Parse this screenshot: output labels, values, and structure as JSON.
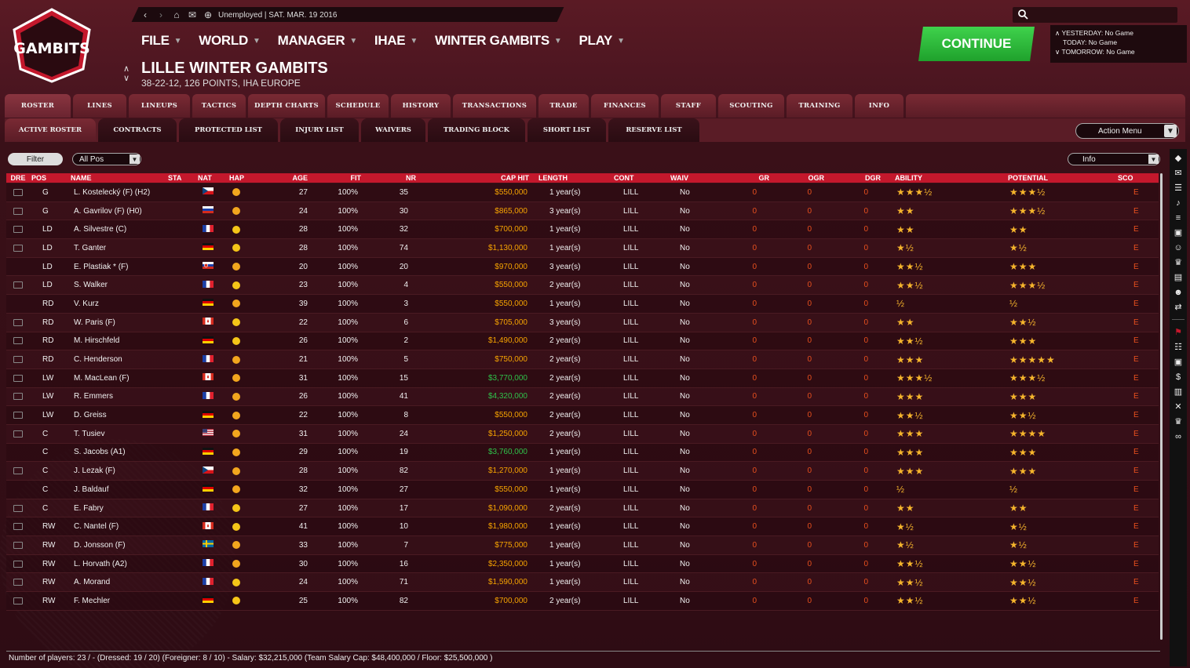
{
  "topbar": {
    "status": "Unemployed |  SAT. MAR. 19 2016"
  },
  "logo": {
    "text": "GAMBITS"
  },
  "menu": [
    {
      "label": "FILE"
    },
    {
      "label": "WORLD"
    },
    {
      "label": "MANAGER"
    },
    {
      "label": "IHAE"
    },
    {
      "label": "WINTER GAMBITS"
    },
    {
      "label": "PLAY"
    }
  ],
  "team": {
    "title": "LILLE WINTER GAMBITS",
    "subtitle": "38-22-12, 126 POINTS, IHA EUROPE"
  },
  "continue_label": "CONTINUE",
  "games": {
    "yesterday": "YESTERDAY: No Game",
    "today": "TODAY: No Game",
    "tomorrow": "TOMORROW: No Game"
  },
  "tabs_main": [
    "ROSTER",
    "LINES",
    "LINEUPS",
    "TACTICS",
    "DEPTH CHARTS",
    "SCHEDULE",
    "HISTORY",
    "TRANSACTIONS",
    "TRADE",
    "FINANCES",
    "STAFF",
    "SCOUTING",
    "TRAINING",
    "INFO"
  ],
  "tabs_sub": [
    "ACTIVE ROSTER",
    "CONTRACTS",
    "PROTECTED LIST",
    "INJURY LIST",
    "WAIVERS",
    "TRADING BLOCK",
    "SHORT LIST",
    "RESERVE LIST"
  ],
  "action_menu": "Action Menu",
  "filter_label": "Filter",
  "pos_select": "All Pos",
  "info_select": "Info",
  "columns": [
    "DRE",
    "POS",
    "NAME",
    "STA",
    "NAT",
    "HAP",
    "AGE",
    "FIT",
    "NR",
    "CAP HIT",
    "LENGTH",
    "CONT",
    "WAIV",
    "GR",
    "OGR",
    "DGR",
    "ABILITY",
    "POTENTIAL",
    "SCO"
  ],
  "players": [
    {
      "dre": true,
      "pos": "G",
      "name": "L. Kostelecký (F) (H2)",
      "nat": "CZ",
      "hap": "orange",
      "age": "27",
      "fit": "100%",
      "nr": "35",
      "cap": "$550,000",
      "cap_color": "orange",
      "length": "1 year(s)",
      "cont": "LILL",
      "waiv": "No",
      "gr": "0",
      "ogr": "0",
      "dgr": "0",
      "ability": "★★★½",
      "potential": "★★★½",
      "sco": "E"
    },
    {
      "dre": true,
      "pos": "G",
      "name": "A. Gavrilov (F) (H0)",
      "nat": "RU",
      "hap": "orange",
      "age": "24",
      "fit": "100%",
      "nr": "30",
      "cap": "$865,000",
      "cap_color": "orange",
      "length": "3 year(s)",
      "cont": "LILL",
      "waiv": "No",
      "gr": "0",
      "ogr": "0",
      "dgr": "0",
      "ability": "★★",
      "potential": "★★★½",
      "sco": "E"
    },
    {
      "dre": true,
      "pos": "LD",
      "name": "A. Silvestre (C)",
      "nat": "FR",
      "hap": "yellow",
      "age": "28",
      "fit": "100%",
      "nr": "32",
      "cap": "$700,000",
      "cap_color": "orange",
      "length": "1 year(s)",
      "cont": "LILL",
      "waiv": "No",
      "gr": "0",
      "ogr": "0",
      "dgr": "0",
      "ability": "★★",
      "potential": "★★",
      "sco": "E"
    },
    {
      "dre": true,
      "pos": "LD",
      "name": "T. Ganter",
      "nat": "DE",
      "hap": "yellow",
      "age": "28",
      "fit": "100%",
      "nr": "74",
      "cap": "$1,130,000",
      "cap_color": "orange",
      "length": "1 year(s)",
      "cont": "LILL",
      "waiv": "No",
      "gr": "0",
      "ogr": "0",
      "dgr": "0",
      "ability": "★½",
      "potential": "★½",
      "sco": "E"
    },
    {
      "dre": false,
      "pos": "LD",
      "name": "E. Plastiak * (F)",
      "nat": "SK",
      "hap": "orange",
      "age": "20",
      "fit": "100%",
      "nr": "20",
      "cap": "$970,000",
      "cap_color": "orange",
      "length": "3 year(s)",
      "cont": "LILL",
      "waiv": "No",
      "gr": "0",
      "ogr": "0",
      "dgr": "0",
      "ability": "★★½",
      "potential": "★★★",
      "sco": "E"
    },
    {
      "dre": true,
      "pos": "LD",
      "name": "S. Walker",
      "nat": "FR",
      "hap": "yellow",
      "age": "23",
      "fit": "100%",
      "nr": "4",
      "cap": "$550,000",
      "cap_color": "orange",
      "length": "2 year(s)",
      "cont": "LILL",
      "waiv": "No",
      "gr": "0",
      "ogr": "0",
      "dgr": "0",
      "ability": "★★½",
      "potential": "★★★½",
      "sco": "E"
    },
    {
      "dre": false,
      "pos": "RD",
      "name": "V. Kurz",
      "nat": "DE",
      "hap": "orange",
      "age": "39",
      "fit": "100%",
      "nr": "3",
      "cap": "$550,000",
      "cap_color": "orange",
      "length": "1 year(s)",
      "cont": "LILL",
      "waiv": "No",
      "gr": "0",
      "ogr": "0",
      "dgr": "0",
      "ability": "½",
      "potential": "½",
      "sco": "E"
    },
    {
      "dre": true,
      "pos": "RD",
      "name": "W. Paris (F)",
      "nat": "CA",
      "hap": "yellow",
      "age": "22",
      "fit": "100%",
      "nr": "6",
      "cap": "$705,000",
      "cap_color": "orange",
      "length": "3 year(s)",
      "cont": "LILL",
      "waiv": "No",
      "gr": "0",
      "ogr": "0",
      "dgr": "0",
      "ability": "★★",
      "potential": "★★½",
      "sco": "E"
    },
    {
      "dre": true,
      "pos": "RD",
      "name": "M. Hirschfeld",
      "nat": "DE",
      "hap": "yellow",
      "age": "26",
      "fit": "100%",
      "nr": "2",
      "cap": "$1,490,000",
      "cap_color": "orange",
      "length": "2 year(s)",
      "cont": "LILL",
      "waiv": "No",
      "gr": "0",
      "ogr": "0",
      "dgr": "0",
      "ability": "★★½",
      "potential": "★★★",
      "sco": "E"
    },
    {
      "dre": true,
      "pos": "RD",
      "name": "C. Henderson",
      "nat": "FR",
      "hap": "orange",
      "age": "21",
      "fit": "100%",
      "nr": "5",
      "cap": "$750,000",
      "cap_color": "orange",
      "length": "2 year(s)",
      "cont": "LILL",
      "waiv": "No",
      "gr": "0",
      "ogr": "0",
      "dgr": "0",
      "ability": "★★★",
      "potential": "★★★★★",
      "sco": "E"
    },
    {
      "dre": true,
      "pos": "LW",
      "name": "M. MacLean (F)",
      "nat": "CA",
      "hap": "orange",
      "age": "31",
      "fit": "100%",
      "nr": "15",
      "cap": "$3,770,000",
      "cap_color": "green",
      "length": "2 year(s)",
      "cont": "LILL",
      "waiv": "No",
      "gr": "0",
      "ogr": "0",
      "dgr": "0",
      "ability": "★★★½",
      "potential": "★★★½",
      "sco": "E"
    },
    {
      "dre": true,
      "pos": "LW",
      "name": "R. Emmers",
      "nat": "FR",
      "hap": "orange",
      "age": "26",
      "fit": "100%",
      "nr": "41",
      "cap": "$4,320,000",
      "cap_color": "green",
      "length": "2 year(s)",
      "cont": "LILL",
      "waiv": "No",
      "gr": "0",
      "ogr": "0",
      "dgr": "0",
      "ability": "★★★",
      "potential": "★★★",
      "sco": "E"
    },
    {
      "dre": true,
      "pos": "LW",
      "name": "D. Greiss",
      "nat": "DE",
      "hap": "orange",
      "age": "22",
      "fit": "100%",
      "nr": "8",
      "cap": "$550,000",
      "cap_color": "orange",
      "length": "2 year(s)",
      "cont": "LILL",
      "waiv": "No",
      "gr": "0",
      "ogr": "0",
      "dgr": "0",
      "ability": "★★½",
      "potential": "★★½",
      "sco": "E"
    },
    {
      "dre": true,
      "pos": "C",
      "name": "T. Tusiev",
      "nat": "US",
      "hap": "orange",
      "age": "31",
      "fit": "100%",
      "nr": "24",
      "cap": "$1,250,000",
      "cap_color": "orange",
      "length": "2 year(s)",
      "cont": "LILL",
      "waiv": "No",
      "gr": "0",
      "ogr": "0",
      "dgr": "0",
      "ability": "★★★",
      "potential": "★★★★",
      "sco": "E"
    },
    {
      "dre": false,
      "pos": "C",
      "name": "S. Jacobs (A1)",
      "nat": "DE",
      "hap": "orange",
      "age": "29",
      "fit": "100%",
      "nr": "19",
      "cap": "$3,760,000",
      "cap_color": "green",
      "length": "1 year(s)",
      "cont": "LILL",
      "waiv": "No",
      "gr": "0",
      "ogr": "0",
      "dgr": "0",
      "ability": "★★★",
      "potential": "★★★",
      "sco": "E"
    },
    {
      "dre": true,
      "pos": "C",
      "name": "J. Lezak (F)",
      "nat": "CZ",
      "hap": "orange",
      "age": "28",
      "fit": "100%",
      "nr": "82",
      "cap": "$1,270,000",
      "cap_color": "orange",
      "length": "1 year(s)",
      "cont": "LILL",
      "waiv": "No",
      "gr": "0",
      "ogr": "0",
      "dgr": "0",
      "ability": "★★★",
      "potential": "★★★",
      "sco": "E"
    },
    {
      "dre": false,
      "pos": "C",
      "name": "J. Baldauf",
      "nat": "DE",
      "hap": "orange",
      "age": "32",
      "fit": "100%",
      "nr": "27",
      "cap": "$550,000",
      "cap_color": "orange",
      "length": "1 year(s)",
      "cont": "LILL",
      "waiv": "No",
      "gr": "0",
      "ogr": "0",
      "dgr": "0",
      "ability": "½",
      "potential": "½",
      "sco": "E"
    },
    {
      "dre": true,
      "pos": "C",
      "name": "E. Fabry",
      "nat": "FR",
      "hap": "yellow",
      "age": "27",
      "fit": "100%",
      "nr": "17",
      "cap": "$1,090,000",
      "cap_color": "orange",
      "length": "2 year(s)",
      "cont": "LILL",
      "waiv": "No",
      "gr": "0",
      "ogr": "0",
      "dgr": "0",
      "ability": "★★",
      "potential": "★★",
      "sco": "E"
    },
    {
      "dre": true,
      "pos": "RW",
      "name": "C. Nantel (F)",
      "nat": "CA",
      "hap": "yellow",
      "age": "41",
      "fit": "100%",
      "nr": "10",
      "cap": "$1,980,000",
      "cap_color": "orange",
      "length": "1 year(s)",
      "cont": "LILL",
      "waiv": "No",
      "gr": "0",
      "ogr": "0",
      "dgr": "0",
      "ability": "★½",
      "potential": "★½",
      "sco": "E"
    },
    {
      "dre": true,
      "pos": "RW",
      "name": "D. Jonsson (F)",
      "nat": "SE",
      "hap": "orange",
      "age": "33",
      "fit": "100%",
      "nr": "7",
      "cap": "$775,000",
      "cap_color": "orange",
      "length": "1 year(s)",
      "cont": "LILL",
      "waiv": "No",
      "gr": "0",
      "ogr": "0",
      "dgr": "0",
      "ability": "★½",
      "potential": "★½",
      "sco": "E"
    },
    {
      "dre": true,
      "pos": "RW",
      "name": "L. Horvath (A2)",
      "nat": "FR",
      "hap": "orange",
      "age": "30",
      "fit": "100%",
      "nr": "16",
      "cap": "$2,350,000",
      "cap_color": "orange",
      "length": "1 year(s)",
      "cont": "LILL",
      "waiv": "No",
      "gr": "0",
      "ogr": "0",
      "dgr": "0",
      "ability": "★★½",
      "potential": "★★½",
      "sco": "E"
    },
    {
      "dre": true,
      "pos": "RW",
      "name": "A. Morand",
      "nat": "FR",
      "hap": "yellow",
      "age": "24",
      "fit": "100%",
      "nr": "71",
      "cap": "$1,590,000",
      "cap_color": "orange",
      "length": "1 year(s)",
      "cont": "LILL",
      "waiv": "No",
      "gr": "0",
      "ogr": "0",
      "dgr": "0",
      "ability": "★★½",
      "potential": "★★½",
      "sco": "E"
    },
    {
      "dre": true,
      "pos": "RW",
      "name": "F. Mechler",
      "nat": "DE",
      "hap": "yellow",
      "age": "25",
      "fit": "100%",
      "nr": "82",
      "cap": "$700,000",
      "cap_color": "orange",
      "length": "2 year(s)",
      "cont": "LILL",
      "waiv": "No",
      "gr": "0",
      "ogr": "0",
      "dgr": "0",
      "ability": "★★½",
      "potential": "★★½",
      "sco": "E"
    }
  ],
  "footer": "Number of players: 23 / - (Dressed: 19 / 20) (Foreigner: 8 / 10) -   Salary: $32,215,000  (Team Salary Cap: $48,400,000 / Floor: $25,500,000 )",
  "sidebar_icons": [
    "team-logo-icon",
    "mail-icon",
    "notes-icon",
    "hockey-icon",
    "list-icon",
    "rink-icon",
    "people-icon",
    "trophy-icon",
    "document-icon",
    "users-dollar-icon",
    "transfer-icon",
    "flag-icon",
    "lines-icon",
    "rink2-icon",
    "dollar-icon",
    "chart-icon",
    "crossed-sticks-icon",
    "trophy2-icon",
    "binoculars-icon"
  ],
  "colors": {
    "accent_red": "#c4182c",
    "continue_green": "#2fb33c",
    "cap_orange": "#f7a400",
    "cap_green": "#2fc24a",
    "zero_orange": "#e8501e",
    "star_gold": "#f6b52c"
  }
}
